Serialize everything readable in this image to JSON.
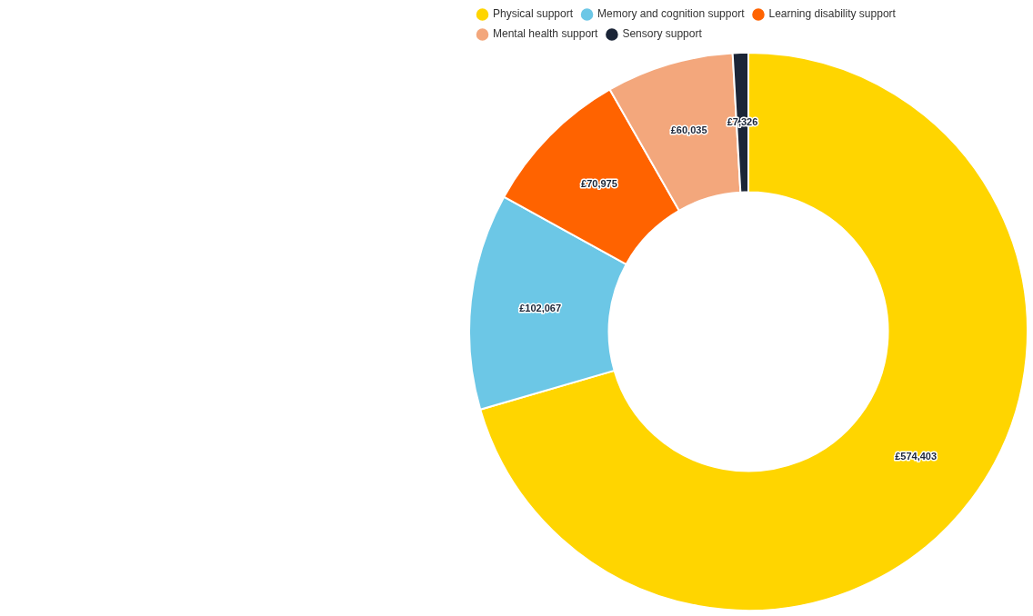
{
  "chart_data": {
    "type": "donut",
    "categories": [
      "Physical support",
      "Memory and cognition support",
      "Learning disability support",
      "Mental health support",
      "Sensory support"
    ],
    "values": [
      574403,
      102067,
      70975,
      60035,
      7326
    ],
    "colors": [
      "#ffd500",
      "#6cc7e6",
      "#ff6300",
      "#f3a77c",
      "#1b2537"
    ],
    "value_labels": [
      "£574,403",
      "£102,067",
      "£70,975",
      "£60,035",
      "£7,326"
    ],
    "legend": "top left"
  }
}
